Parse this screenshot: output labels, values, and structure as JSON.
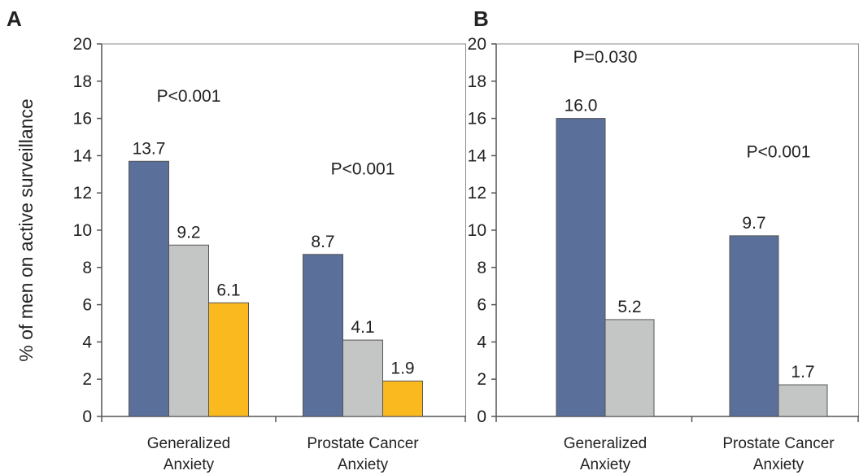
{
  "chart_data": [
    {
      "type": "bar",
      "panel_label": "A",
      "ylabel": "% of men on active surveillance",
      "ylim": [
        0,
        20
      ],
      "yticks": [
        0,
        2,
        4,
        6,
        8,
        10,
        12,
        14,
        16,
        18,
        20
      ],
      "categories": [
        "Generalized Anxiety",
        "Prostate Cancer Anxiety"
      ],
      "category_lines": [
        [
          "Generalized",
          "Anxiety"
        ],
        [
          "Prostate Cancer",
          "Anxiety"
        ]
      ],
      "series": [
        {
          "color": "#5a6f9a",
          "values": [
            13.7,
            8.7
          ],
          "labels": [
            "13.7",
            "8.7"
          ]
        },
        {
          "color": "#c4c5c5",
          "values": [
            9.2,
            4.1
          ],
          "labels": [
            "9.2",
            "4.1"
          ]
        },
        {
          "color": "#fbb920",
          "values": [
            6.1,
            1.9
          ],
          "labels": [
            "6.1",
            "1.9"
          ]
        }
      ],
      "annotations": [
        {
          "text": "P<0.001",
          "category": 0,
          "y": 16.9
        },
        {
          "text": "P<0.001",
          "category": 1,
          "y": 13.0
        }
      ]
    },
    {
      "type": "bar",
      "panel_label": "B",
      "ylabel": "",
      "ylim": [
        0,
        20
      ],
      "yticks": [
        0,
        2,
        4,
        6,
        8,
        10,
        12,
        14,
        16,
        18,
        20
      ],
      "categories": [
        "Generalized Anxiety",
        "Prostate Cancer Anxiety"
      ],
      "category_lines": [
        [
          "Generalized",
          "Anxiety"
        ],
        [
          "Prostate Cancer",
          "Anxiety"
        ]
      ],
      "series": [
        {
          "color": "#5a6f9a",
          "values": [
            16.0,
            9.7
          ],
          "labels": [
            "16.0",
            "9.7"
          ]
        },
        {
          "color": "#c4c5c5",
          "values": [
            5.2,
            1.7
          ],
          "labels": [
            "5.2",
            "1.7"
          ]
        }
      ],
      "annotations": [
        {
          "text": "P=0.030",
          "category": 0,
          "y": 19.0
        },
        {
          "text": "P<0.001",
          "category": 1,
          "y": 13.9
        }
      ]
    }
  ]
}
